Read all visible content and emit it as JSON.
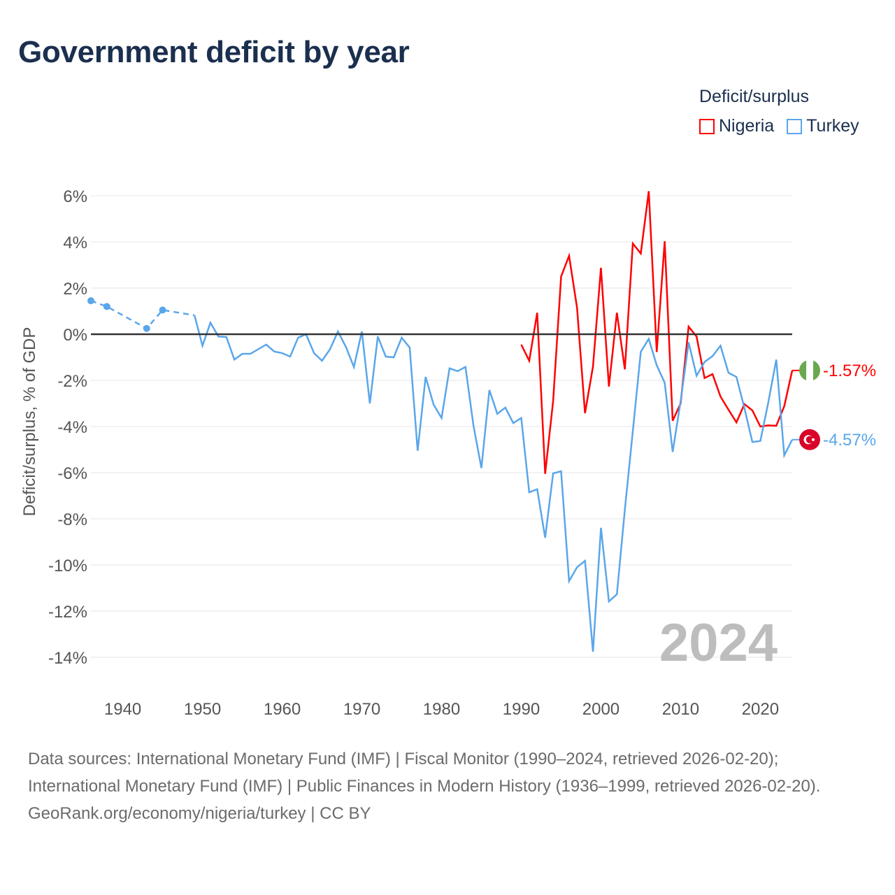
{
  "title": "Government deficit by year",
  "legend": {
    "title": "Deficit/surplus",
    "items": [
      {
        "label": "Nigeria",
        "color": "#ff0000"
      },
      {
        "label": "Turkey",
        "color": "#5aa6ea"
      }
    ]
  },
  "footer": {
    "sources": "Data sources: International Monetary Fund (IMF) | Fiscal Monitor (1990–2024, retrieved 2026-02-20); International Monetary Fund (IMF) | Public Finances in Modern History (1936–1999, retrieved 2026-02-20).",
    "credit": "GeoRank.org/economy/nigeria/turkey | CC BY"
  },
  "chart_data": {
    "type": "line",
    "title": "Government deficit by year",
    "ylabel": "Deficit/surplus, % of GDP",
    "xlabel": "",
    "xlim": [
      1936,
      2024
    ],
    "ylim": [
      -14,
      6
    ],
    "xticks": [
      1940,
      1950,
      1960,
      1970,
      1980,
      1990,
      2000,
      2010,
      2020
    ],
    "xtick_labels": [
      "1940",
      "1950",
      "1960",
      "1970",
      "1980",
      "1990",
      "2000",
      "2010",
      "2020"
    ],
    "yticks": [
      6,
      4,
      2,
      0,
      -2,
      -4,
      -6,
      -8,
      -10,
      -12,
      -14
    ],
    "ytick_labels": [
      "6%",
      "4%",
      "2%",
      "0%",
      "-2%",
      "-4%",
      "-6%",
      "-8%",
      "-10%",
      "-12%",
      "-14%"
    ],
    "grid": true,
    "legend_position": "top-right",
    "year_watermark": "2024",
    "series": [
      {
        "name": "Nigeria",
        "color": "#ff0000",
        "end_label": "-1.57%",
        "flag": "nigeria-flag",
        "x": [
          1990,
          1991,
          1992,
          1993,
          1994,
          1995,
          1996,
          1997,
          1998,
          1999,
          2000,
          2001,
          2002,
          2003,
          2004,
          2005,
          2006,
          2007,
          2008,
          2009,
          2010,
          2011,
          2012,
          2013,
          2014,
          2015,
          2016,
          2017,
          2018,
          2019,
          2020,
          2021,
          2022,
          2023,
          2024
        ],
        "y": [
          -0.45,
          -1.15,
          0.93,
          -6.05,
          -2.9,
          2.5,
          3.4,
          1.15,
          -3.42,
          -1.4,
          2.88,
          -2.27,
          0.93,
          -1.52,
          3.93,
          3.5,
          6.2,
          -0.77,
          4.03,
          -3.75,
          -3.0,
          0.33,
          -0.1,
          -1.9,
          -1.73,
          -2.7,
          -3.27,
          -3.82,
          -3.03,
          -3.3,
          -4.0,
          -3.95,
          -3.97,
          -3.12,
          -1.57
        ]
      },
      {
        "name": "Turkey",
        "color": "#5aa6ea",
        "end_label": "-4.57%",
        "flag": "turkey-flag",
        "dashed_until": 1949,
        "marker_years": [
          1936,
          1938,
          1943,
          1945
        ],
        "x": [
          1936,
          1938,
          1943,
          1945,
          1949,
          1950,
          1951,
          1952,
          1953,
          1954,
          1955,
          1956,
          1957,
          1958,
          1959,
          1960,
          1961,
          1962,
          1963,
          1964,
          1965,
          1966,
          1967,
          1968,
          1969,
          1970,
          1971,
          1972,
          1973,
          1974,
          1975,
          1976,
          1977,
          1978,
          1979,
          1980,
          1981,
          1982,
          1983,
          1984,
          1985,
          1986,
          1987,
          1988,
          1989,
          1990,
          1991,
          1992,
          1993,
          1994,
          1995,
          1996,
          1997,
          1998,
          1999,
          2000,
          2001,
          2002,
          2003,
          2004,
          2005,
          2006,
          2007,
          2008,
          2009,
          2010,
          2011,
          2012,
          2013,
          2014,
          2015,
          2016,
          2017,
          2018,
          2019,
          2020,
          2021,
          2022,
          2023,
          2024
        ],
        "y": [
          1.45,
          1.2,
          0.25,
          1.05,
          0.82,
          -0.5,
          0.5,
          -0.1,
          -0.12,
          -1.1,
          -0.85,
          -0.85,
          -0.65,
          -0.45,
          -0.75,
          -0.82,
          -0.97,
          -0.15,
          0.0,
          -0.82,
          -1.15,
          -0.65,
          0.12,
          -0.55,
          -1.42,
          0.12,
          -3.0,
          -0.1,
          -0.97,
          -1.0,
          -0.15,
          -0.58,
          -5.05,
          -1.85,
          -3.05,
          -3.63,
          -1.48,
          -1.6,
          -1.42,
          -3.95,
          -5.8,
          -2.42,
          -3.45,
          -3.18,
          -3.85,
          -3.63,
          -6.85,
          -6.72,
          -8.82,
          -6.03,
          -5.94,
          -10.7,
          -10.1,
          -9.82,
          -13.76,
          -8.39,
          -11.58,
          -11.27,
          -7.6,
          -4.2,
          -0.76,
          -0.2,
          -1.35,
          -2.1,
          -5.1,
          -2.9,
          -0.35,
          -1.8,
          -1.2,
          -0.95,
          -0.5,
          -1.67,
          -1.85,
          -3.2,
          -4.67,
          -4.63,
          -2.95,
          -1.1,
          -5.25,
          -4.57
        ]
      }
    ]
  }
}
